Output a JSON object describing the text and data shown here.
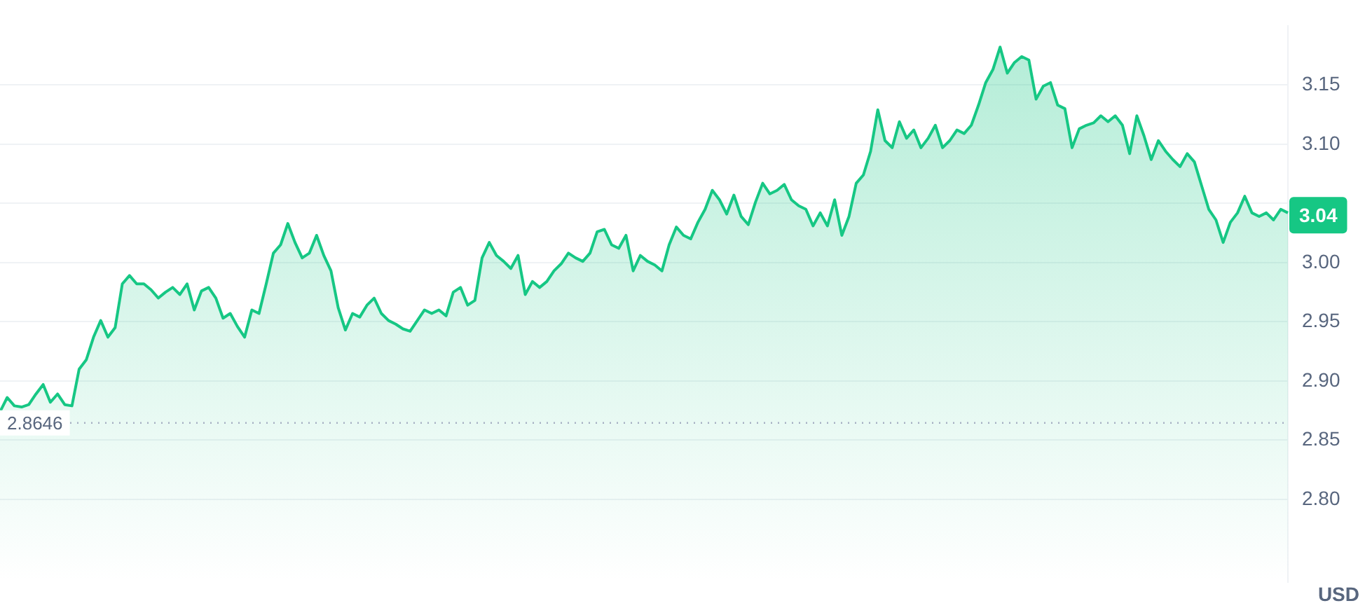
{
  "chart_data": {
    "type": "area",
    "ylabel": "USD",
    "categories": [
      null,
      null,
      null,
      null,
      null,
      null,
      null,
      null,
      null,
      null,
      null,
      null,
      null,
      null,
      null,
      null,
      null,
      null,
      null,
      null,
      null,
      null,
      null,
      null,
      null,
      null,
      null,
      null,
      null,
      null,
      null,
      null,
      null,
      null,
      null,
      null,
      null,
      null,
      null,
      null,
      null,
      null,
      null,
      null,
      null,
      null,
      null,
      null,
      null,
      null,
      null,
      null,
      null,
      null,
      null,
      null,
      null,
      null,
      null,
      null,
      null,
      null,
      null,
      null,
      null,
      null,
      null,
      null,
      null,
      null,
      null,
      null,
      null,
      null,
      null,
      null,
      null,
      null,
      null,
      null,
      null,
      null,
      null,
      null,
      null,
      null,
      null,
      null,
      null,
      null,
      null,
      null,
      null,
      null,
      null,
      null,
      null,
      null,
      null,
      null,
      null,
      null,
      null,
      null,
      null,
      null,
      null,
      null,
      null,
      null,
      null,
      null,
      null,
      null,
      null,
      null,
      null,
      null,
      null,
      null,
      null,
      null,
      null,
      null,
      null,
      null,
      null,
      null,
      null,
      null,
      null,
      null,
      null,
      null,
      null,
      null,
      null,
      null,
      null,
      null,
      null,
      null,
      null,
      null,
      null,
      null,
      null,
      null,
      null,
      null,
      null,
      null,
      null,
      null,
      null,
      null,
      null,
      null,
      null,
      null,
      null,
      null,
      null,
      null,
      null,
      null,
      null,
      null,
      null,
      null,
      null,
      null,
      null,
      null,
      null,
      null,
      null,
      null,
      null,
      null
    ],
    "series": [
      {
        "color": "#16c784",
        "values": [
          2.874,
          2.886,
          2.879,
          2.878,
          2.88,
          2.889,
          2.897,
          2.882,
          2.889,
          2.88,
          2.879,
          2.91,
          2.918,
          2.937,
          2.951,
          2.937,
          2.945,
          2.982,
          2.989,
          2.982,
          2.982,
          2.977,
          2.97,
          2.975,
          2.979,
          2.973,
          2.982,
          2.96,
          2.976,
          2.979,
          2.97,
          2.953,
          2.957,
          2.946,
          2.937,
          2.96,
          2.957,
          2.982,
          3.008,
          3.015,
          3.033,
          3.017,
          3.004,
          3.008,
          3.023,
          3.006,
          2.993,
          2.962,
          2.943,
          2.957,
          2.954,
          2.964,
          2.97,
          2.957,
          2.951,
          2.948,
          2.944,
          2.942,
          2.951,
          2.96,
          2.957,
          2.96,
          2.955,
          2.975,
          2.979,
          2.964,
          2.968,
          3.004,
          3.017,
          3.006,
          3.001,
          2.995,
          3.006,
          2.973,
          2.984,
          2.979,
          2.984,
          2.993,
          2.999,
          3.008,
          3.004,
          3.001,
          3.008,
          3.026,
          3.028,
          3.015,
          3.012,
          3.023,
          2.993,
          3.006,
          3.001,
          2.998,
          2.993,
          3.015,
          3.03,
          3.023,
          3.02,
          3.034,
          3.045,
          3.061,
          3.053,
          3.041,
          3.057,
          3.039,
          3.032,
          3.051,
          3.067,
          3.058,
          3.061,
          3.066,
          3.053,
          3.048,
          3.045,
          3.031,
          3.042,
          3.031,
          3.053,
          3.023,
          3.039,
          3.067,
          3.074,
          3.094,
          3.129,
          3.103,
          3.097,
          3.119,
          3.105,
          3.112,
          3.097,
          3.105,
          3.116,
          3.097,
          3.103,
          3.112,
          3.109,
          3.116,
          3.133,
          3.152,
          3.163,
          3.182,
          3.16,
          3.169,
          3.174,
          3.171,
          3.138,
          3.149,
          3.152,
          3.133,
          3.13,
          3.097,
          3.113,
          3.116,
          3.118,
          3.124,
          3.119,
          3.124,
          3.116,
          3.092,
          3.124,
          3.107,
          3.087,
          3.103,
          3.094,
          3.087,
          3.081,
          3.092,
          3.085,
          3.065,
          3.045,
          3.036,
          3.017,
          3.034,
          3.042,
          3.056,
          3.042,
          3.039,
          3.042,
          3.036,
          3.045,
          3.042
        ]
      }
    ],
    "ylim": [
      2.73,
      3.2
    ],
    "yticks": [
      {
        "value": 2.8,
        "label": "2.80"
      },
      2.85,
      {
        "value": 2.9,
        "label": "2.90"
      },
      2.95,
      {
        "value": 3.0,
        "label": "3.00"
      },
      {
        "value": 3.05,
        "label": null
      },
      {
        "value": 3.1,
        "label": "3.10"
      },
      3.15
    ],
    "grid": "y",
    "tick_labels": "y",
    "legend": false,
    "marker": "none",
    "ref_lines": [
      {
        "axis": "y",
        "value": 2.8646,
        "label": "2.8646",
        "color": "#a6b0c3",
        "line_style": "dotted"
      }
    ],
    "annotations": [
      {
        "text": "3.04",
        "y": 3.04
      }
    ]
  }
}
